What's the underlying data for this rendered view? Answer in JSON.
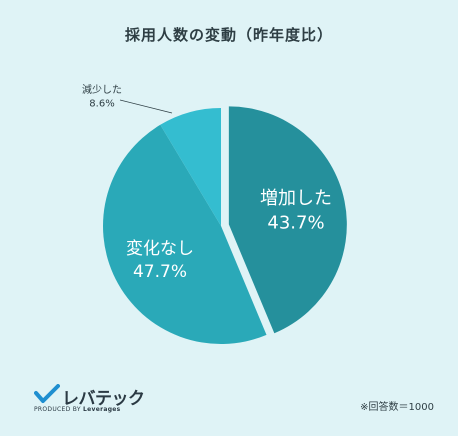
{
  "title": "採用人数の変動（昨年度比）",
  "chart_data": {
    "type": "pie",
    "slices": [
      {
        "label": "増加した",
        "value": 43.7,
        "value_label": "43.7%",
        "color": "#25909c"
      },
      {
        "label": "変化なし",
        "value": 47.7,
        "value_label": "47.7%",
        "color": "#2aa9b8"
      },
      {
        "label": "減少した",
        "value": 8.6,
        "value_label": "8.6%",
        "color": "#34bdd0"
      }
    ]
  },
  "logo": {
    "name": "レバテック",
    "sub_prefix": "PRODUCED BY",
    "sub_brand": "Leverages"
  },
  "footnote": "※回答数＝1000"
}
